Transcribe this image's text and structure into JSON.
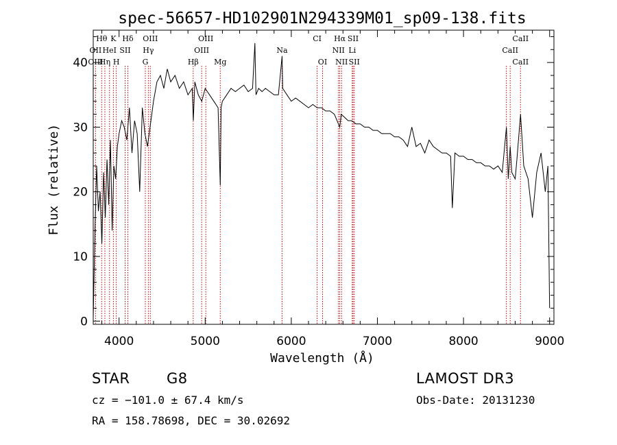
{
  "chart_data": {
    "type": "line",
    "title": "spec-56657-HD102901N294339M01_sp09-138.fits",
    "xlabel": "Wavelength (Å)",
    "ylabel": "Flux (relative)",
    "xlim": [
      3700,
      9050
    ],
    "ylim": [
      -0.5,
      45
    ],
    "xticks": [
      4000,
      5000,
      6000,
      7000,
      8000,
      9000
    ],
    "yticks": [
      0,
      10,
      20,
      30,
      40
    ],
    "grid": false,
    "series": [
      {
        "name": "flux",
        "x": [
          3700,
          3720,
          3740,
          3760,
          3780,
          3800,
          3820,
          3840,
          3860,
          3880,
          3900,
          3920,
          3940,
          3960,
          3980,
          4000,
          4030,
          4060,
          4090,
          4120,
          4150,
          4180,
          4210,
          4240,
          4270,
          4300,
          4330,
          4360,
          4400,
          4440,
          4480,
          4520,
          4560,
          4600,
          4650,
          4700,
          4750,
          4800,
          4850,
          4862,
          4880,
          4920,
          4960,
          5000,
          5050,
          5100,
          5150,
          5175,
          5185,
          5200,
          5250,
          5300,
          5350,
          5400,
          5450,
          5500,
          5550,
          5577,
          5590,
          5620,
          5660,
          5700,
          5750,
          5800,
          5850,
          5893,
          5900,
          5950,
          6000,
          6050,
          6100,
          6150,
          6200,
          6250,
          6300,
          6350,
          6400,
          6450,
          6500,
          6563,
          6580,
          6620,
          6660,
          6700,
          6750,
          6800,
          6850,
          6900,
          6950,
          7000,
          7050,
          7100,
          7150,
          7200,
          7250,
          7300,
          7350,
          7400,
          7450,
          7500,
          7550,
          7600,
          7650,
          7700,
          7750,
          7800,
          7850,
          7870,
          7900,
          7950,
          8000,
          8050,
          8100,
          8150,
          8200,
          8250,
          8300,
          8350,
          8400,
          8450,
          8498,
          8520,
          8542,
          8560,
          8600,
          8620,
          8662,
          8700,
          8750,
          8800,
          8850,
          8900,
          8950,
          8980,
          9000
        ],
        "y": [
          0.5,
          14,
          24,
          17,
          20,
          12,
          23,
          16,
          25,
          18,
          28,
          14,
          24,
          22,
          27,
          29,
          31,
          30,
          28,
          33,
          26,
          31,
          29,
          20,
          33,
          29,
          27,
          30,
          34,
          37,
          38,
          36,
          39,
          37,
          38,
          36,
          37,
          35,
          36,
          31,
          37,
          35,
          34,
          36,
          35,
          34,
          33,
          21,
          33,
          34,
          35,
          36,
          35.5,
          36,
          36.5,
          35.5,
          36,
          43,
          35,
          36,
          35.5,
          36,
          35.5,
          35,
          35,
          41,
          36,
          35,
          34,
          34.5,
          34,
          33.5,
          33,
          33.5,
          33,
          33,
          32.5,
          32.5,
          32,
          30,
          32,
          31.5,
          31,
          31,
          30.5,
          30.5,
          30,
          30,
          29.5,
          29.5,
          29,
          29,
          29,
          28.5,
          28.5,
          28,
          27,
          30,
          27,
          27.5,
          26,
          28,
          27,
          26.5,
          26,
          26,
          25.5,
          17.5,
          26,
          25.5,
          25.5,
          25,
          25,
          24.5,
          24.5,
          24,
          24,
          23.5,
          24,
          23,
          30,
          22,
          27,
          23,
          22,
          25,
          32,
          24,
          22,
          16,
          23,
          26,
          20,
          24,
          2
        ]
      }
    ],
    "emission_lines": [
      {
        "label": "Hθ",
        "x": 3798,
        "row": 1
      },
      {
        "label": "K",
        "x": 3934,
        "row": 1
      },
      {
        "label": "Hδ",
        "x": 4102,
        "row": 1
      },
      {
        "label": "OIII",
        "x": 4363,
        "row": 1
      },
      {
        "label": "OIII",
        "x": 5007,
        "row": 1
      },
      {
        "label": "CI",
        "x": 6300,
        "row": 1
      },
      {
        "label": "Hα",
        "x": 6563,
        "row": 1
      },
      {
        "label": "SII",
        "x": 6717,
        "row": 1
      },
      {
        "label": "CaII",
        "x": 8662,
        "row": 1
      },
      {
        "label": "OII",
        "x": 3727,
        "row": 2
      },
      {
        "label": "HeI",
        "x": 3889,
        "row": 2
      },
      {
        "label": "SII",
        "x": 4070,
        "row": 2
      },
      {
        "label": "Hγ",
        "x": 4340,
        "row": 2
      },
      {
        "label": "OIII",
        "x": 4959,
        "row": 2
      },
      {
        "label": "Na",
        "x": 5893,
        "row": 2
      },
      {
        "label": "NII",
        "x": 6548,
        "row": 2
      },
      {
        "label": "Li",
        "x": 6708,
        "row": 2
      },
      {
        "label": "CaII",
        "x": 8542,
        "row": 2
      },
      {
        "label": "OIII",
        "x": 3727,
        "row": 3
      },
      {
        "label": "Hη",
        "x": 3835,
        "row": 3
      },
      {
        "label": "H",
        "x": 3968,
        "row": 3
      },
      {
        "label": "G",
        "x": 4305,
        "row": 3
      },
      {
        "label": "Hβ",
        "x": 4861,
        "row": 3
      },
      {
        "label": "Mg",
        "x": 5175,
        "row": 3
      },
      {
        "label": "OI",
        "x": 6363,
        "row": 3
      },
      {
        "label": "NII",
        "x": 6584,
        "row": 3
      },
      {
        "label": "SII",
        "x": 6731,
        "row": 3
      },
      {
        "label": "CaII",
        "x": 8662,
        "row": 3
      }
    ],
    "marker_lines": [
      3727,
      3798,
      3835,
      3889,
      3934,
      3968,
      4070,
      4102,
      4305,
      4340,
      4363,
      4861,
      4959,
      5007,
      5175,
      5893,
      6300,
      6363,
      6548,
      6563,
      6584,
      6708,
      6717,
      6731,
      8498,
      8542,
      8662
    ]
  },
  "info": {
    "object_class": "STAR",
    "subclass": "G8",
    "survey": "LAMOST DR3",
    "redshift_line": "cz = −101.0 ± 67.4 km/s",
    "obs_date": "Obs-Date: 20131230",
    "coords": "RA = 158.78698, DEC =  30.02692"
  }
}
